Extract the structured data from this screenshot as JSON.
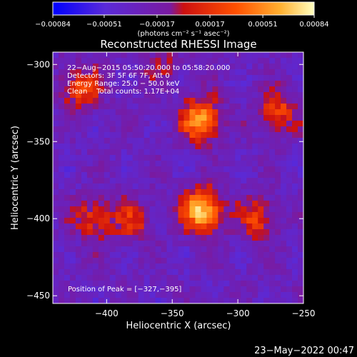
{
  "chart_data": {
    "type": "heatmap",
    "title": "Reconstructed RHESSI Image",
    "xlabel": "Heliocentric X (arcsec)",
    "ylabel": "Heliocentric Y (arcsec)",
    "xlim": [
      -441,
      -250
    ],
    "ylim": [
      -455,
      -292
    ],
    "x_ticks": [
      -400,
      -350,
      -300,
      -250
    ],
    "x_tick_labels": [
      "−400",
      "−350",
      "−300",
      "−250"
    ],
    "y_ticks": [
      -300,
      -350,
      -400,
      -450
    ],
    "y_tick_labels": [
      "−300",
      "−350",
      "−400",
      "−450"
    ],
    "colorbar": {
      "range": [
        -0.00084,
        0.00084
      ],
      "tick_values": [
        -0.00084,
        -0.00051,
        -0.00017,
        0.00017,
        0.00051,
        0.00084
      ],
      "tick_labels": [
        "−0.00084",
        "−0.00051",
        "−0.00017",
        "0.00017",
        "0.00051",
        "0.00084"
      ],
      "unit_label": "(photons cm⁻² s⁻¹ asec⁻²)",
      "colors": [
        "#0000ff",
        "#7a2cd2",
        "#cc1010",
        "#ff5000",
        "#ffb030",
        "#ffffb0"
      ]
    },
    "info": [
      "22−Aug−2015 05:50:20.000 to 05:58:20.000",
      "Detectors: 3F 5F 6F 7F, Att 0",
      "Energy Range: 25.0 − 50.0 keV",
      "Clean    Total counts: 1.17E+04"
    ],
    "peak_label": "Position of Peak = [−327,−395]",
    "peak": [
      -327,
      -395
    ],
    "sources": [
      {
        "x": -328,
        "y": -336,
        "level": 0.85
      },
      {
        "x": -327,
        "y": -395,
        "level": 1.0
      },
      {
        "x": -420,
        "y": -315,
        "level": 0.55
      },
      {
        "x": -270,
        "y": -330,
        "level": 0.5
      },
      {
        "x": -410,
        "y": -400,
        "level": 0.45
      },
      {
        "x": -380,
        "y": -402,
        "level": 0.4
      },
      {
        "x": -285,
        "y": -400,
        "level": 0.45
      },
      {
        "x": -360,
        "y": -300,
        "level": 0.25
      }
    ]
  },
  "footer": {
    "timestamp": "23−May−2022 00:47"
  }
}
